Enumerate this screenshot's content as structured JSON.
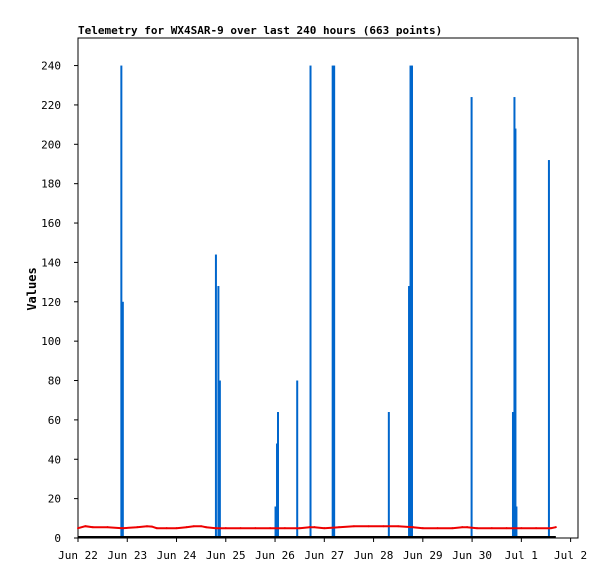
{
  "chart_data": {
    "type": "bar",
    "title": "Telemetry for WX4SAR-9 over last 240 hours (663 points)",
    "xlabel": "",
    "ylabel": "Values",
    "ylim": [
      0,
      254
    ],
    "xlim": [
      0,
      10.15
    ],
    "grid": false,
    "legend": "none",
    "x_ticks": [
      "Jun 22",
      "Jun 23",
      "Jun 24",
      "Jun 25",
      "Jun 26",
      "Jun 27",
      "Jun 28",
      "Jun 29",
      "Jun 30",
      "Jul 1",
      "Jul 2"
    ],
    "y_ticks": [
      0,
      20,
      40,
      60,
      80,
      100,
      120,
      140,
      160,
      180,
      200,
      220,
      240
    ],
    "colors": {
      "spikes": "#0066cc",
      "baseline": "#ee0000",
      "floor": "#000000"
    },
    "series": [
      {
        "type": "bar",
        "x": [
          0.88,
          0.91,
          2.8,
          2.85,
          2.88,
          4.01,
          4.04,
          4.06,
          4.45,
          4.72,
          5.17,
          5.2,
          6.31,
          6.72,
          6.75,
          6.78,
          7.99,
          8.83,
          8.86,
          8.88,
          8.9,
          9.56
        ],
        "values": [
          240,
          120,
          144,
          128,
          80,
          16,
          48,
          64,
          80,
          240,
          240,
          240,
          64,
          128,
          240,
          240,
          224,
          64,
          224,
          208,
          16,
          192
        ]
      },
      {
        "type": "line",
        "x": [
          0.0,
          0.15,
          0.3,
          0.6,
          0.9,
          1.2,
          1.4,
          1.5,
          1.6,
          1.8,
          2.0,
          2.2,
          2.35,
          2.5,
          2.6,
          2.8,
          3.0,
          3.3,
          3.6,
          3.9,
          4.2,
          4.5,
          4.7,
          4.8,
          5.0,
          5.3,
          5.6,
          5.9,
          6.2,
          6.5,
          6.8,
          7.0,
          7.3,
          7.6,
          7.8,
          7.9,
          8.1,
          8.4,
          8.7,
          9.0,
          9.3,
          9.6,
          9.7
        ],
        "values": [
          5,
          6,
          5.5,
          5.5,
          5,
          5.5,
          6,
          5.8,
          5,
          5,
          5,
          5.5,
          6,
          6,
          5.5,
          5,
          5,
          5,
          5,
          5,
          5,
          5,
          5.5,
          5.5,
          5,
          5.5,
          6,
          6,
          6,
          6,
          5.5,
          5,
          5,
          5,
          5.5,
          5.5,
          5,
          5,
          5,
          5,
          5,
          5,
          5.5
        ]
      }
    ]
  }
}
